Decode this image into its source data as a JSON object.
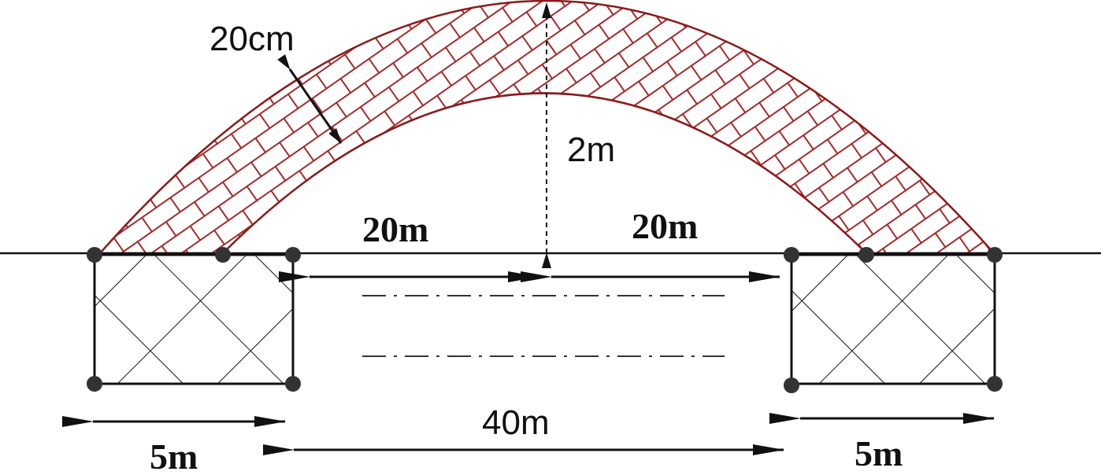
{
  "labels": {
    "thickness": "20cm",
    "rise": "2m",
    "half_span_left": "20m",
    "half_span_right": "20m",
    "span": "40m",
    "abutment_left_width": "5m",
    "abutment_right_width": "5m"
  },
  "colors": {
    "arch_stroke": "#8b1a1a",
    "arch_hatch": "#a52a2a",
    "line": "#111111",
    "node": "#333333"
  }
}
